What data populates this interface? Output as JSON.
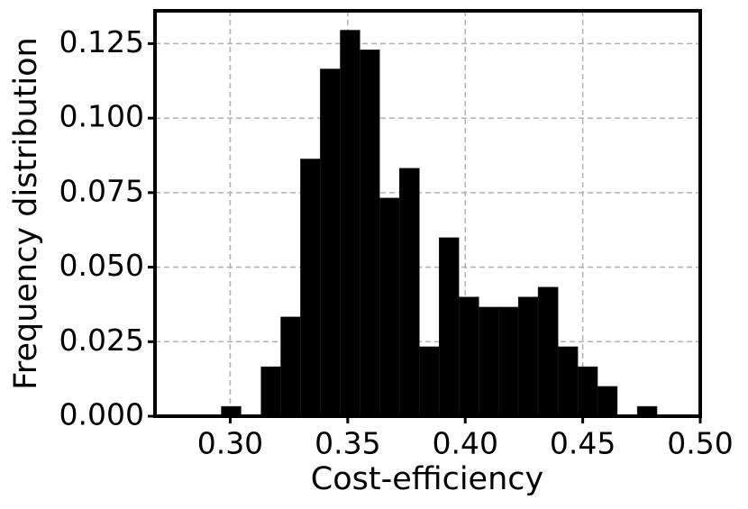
{
  "chart_data": {
    "type": "histogram",
    "xlabel": "Cost-efficiency",
    "ylabel": "Frequency distribution",
    "bins": [
      0.2962,
      0.3046,
      0.3131,
      0.3215,
      0.3299,
      0.3383,
      0.3468,
      0.3552,
      0.3636,
      0.372,
      0.3805,
      0.3889,
      0.3973,
      0.4058,
      0.4142,
      0.4226,
      0.431,
      0.4395,
      0.4479,
      0.4563,
      0.4647,
      0.4732,
      0.4816
    ],
    "values": [
      0.0033,
      0,
      0.0166,
      0.0333,
      0.0863,
      0.1165,
      0.1295,
      0.1229,
      0.0732,
      0.0832,
      0.0233,
      0.0599,
      0.04,
      0.0366,
      0.0366,
      0.04,
      0.0433,
      0.0233,
      0.0166,
      0.01,
      0,
      0.0033
    ],
    "color": "#000000",
    "xlim": [
      0.268,
      0.5
    ],
    "ylim": [
      0,
      0.136
    ],
    "xticks": [
      {
        "value": 0.3,
        "label": "0.30"
      },
      {
        "value": 0.35,
        "label": "0.35"
      },
      {
        "value": 0.4,
        "label": "0.40"
      },
      {
        "value": 0.45,
        "label": "0.45"
      },
      {
        "value": 0.5,
        "label": "0.50"
      }
    ],
    "yticks": [
      {
        "value": 0,
        "label": "0.000"
      },
      {
        "value": 0.025,
        "label": "0.025"
      },
      {
        "value": 0.05,
        "label": "0.050"
      },
      {
        "value": 0.075,
        "label": "0.075"
      },
      {
        "value": 0.1,
        "label": "0.100"
      },
      {
        "value": 0.125,
        "label": "0.125"
      }
    ],
    "grid": true
  }
}
